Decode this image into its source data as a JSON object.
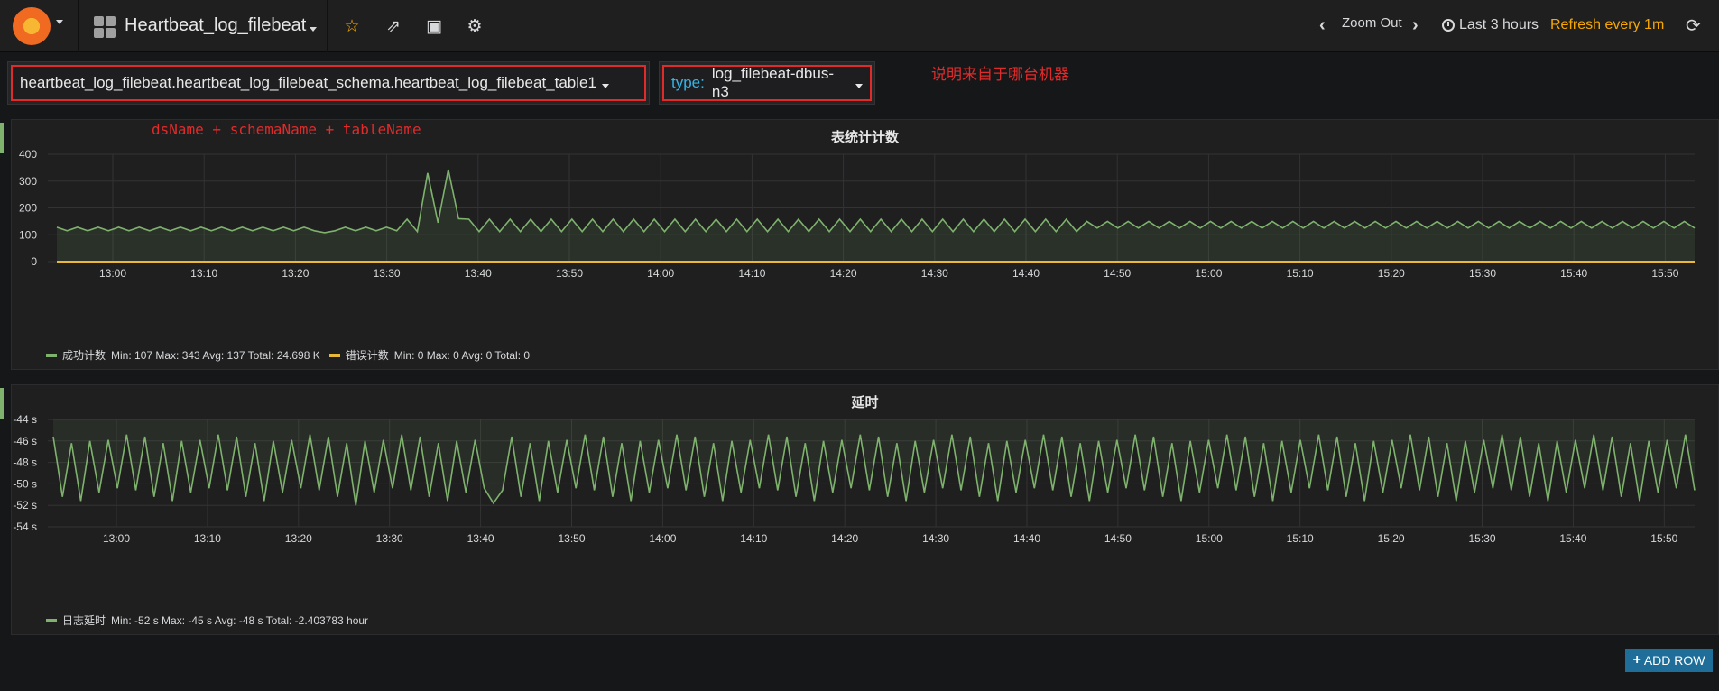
{
  "navbar": {
    "dashboard_title": "Heartbeat_log_filebeat",
    "zoom_out": "Zoom Out",
    "time_range": "Last 3 hours",
    "refresh": "Refresh every 1m"
  },
  "templating": {
    "table_var": {
      "value": "heartbeat_log_filebeat.heartbeat_log_filebeat_schema.heartbeat_log_filebeat_table1"
    },
    "type_var": {
      "label": "type:",
      "value": "log_filebeat-dbus-n3"
    }
  },
  "annotations": {
    "machine_note": "说明来自于哪台机器",
    "name_note": "dsName + schemaName + tableName"
  },
  "panels": [
    {
      "title": "表统计计数",
      "chart_data": {
        "type": "line",
        "y_ticks": [
          "400",
          "300",
          "200",
          "100",
          "0"
        ],
        "ylim": [
          0,
          400
        ],
        "x_ticks": [
          "13:00",
          "13:10",
          "13:20",
          "13:30",
          "13:40",
          "13:50",
          "14:00",
          "14:10",
          "14:20",
          "14:30",
          "14:40",
          "14:50",
          "15:00",
          "15:10",
          "15:20",
          "15:30",
          "15:40",
          "15:50"
        ],
        "grid": true,
        "series": [
          {
            "name": "成功计数",
            "color": "#7eb26d",
            "fill": true,
            "stats": "Min: 107  Max: 343  Avg: 137  Total: 24.698 K",
            "peaks": [
              {
                "time": "13:29",
                "value": 330
              },
              {
                "time": "13:31",
                "value": 343
              }
            ],
            "range": [
              107,
              165
            ]
          },
          {
            "name": "错误计数",
            "color": "#eab839",
            "fill": false,
            "stats": "Min: 0  Max: 0  Avg: 0  Total: 0",
            "constant": 0
          }
        ]
      }
    },
    {
      "title": "延时",
      "chart_data": {
        "type": "line",
        "y_ticks": [
          "-44 s",
          "-46 s",
          "-48 s",
          "-50 s",
          "-52 s",
          "-54 s"
        ],
        "ylim": [
          -54,
          -44
        ],
        "x_ticks": [
          "13:00",
          "13:10",
          "13:20",
          "13:30",
          "13:40",
          "13:50",
          "14:00",
          "14:10",
          "14:20",
          "14:30",
          "14:40",
          "14:50",
          "15:00",
          "15:10",
          "15:20",
          "15:30",
          "15:40",
          "15:50"
        ],
        "grid": true,
        "series": [
          {
            "name": "日志延时",
            "color": "#7eb26d",
            "fill": true,
            "stats": "Min: -52 s  Max: -45 s  Avg: -48 s  Total: -2.403783 hour",
            "range": [
              -52,
              -45
            ]
          }
        ]
      }
    }
  ],
  "add_row_label": "ADD ROW"
}
